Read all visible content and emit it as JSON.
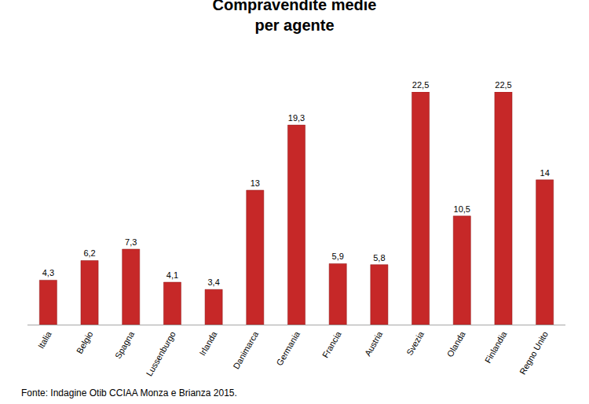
{
  "chart_data": {
    "type": "bar",
    "title": "Compravendite medie\nper agente",
    "annotations": [
      "Fonte: Indagine Otib CCIAA Monza e Brianza 2015."
    ],
    "categories": [
      "Italia",
      "Belgio",
      "Spagna",
      "Lussenburgo",
      "Irlanda",
      "Danimarca",
      "Germania",
      "Francia",
      "Austria",
      "Svezia",
      "Olanda",
      "Finlandia",
      "Regno Unito"
    ],
    "values": [
      4.3,
      6.2,
      7.3,
      4.1,
      3.4,
      13,
      19.3,
      5.9,
      5.8,
      22.5,
      10.5,
      22.5,
      14
    ],
    "value_labels": [
      "4,3",
      "6,2",
      "7,3",
      "4,1",
      "3,4",
      "13",
      "19,3",
      "5,9",
      "5,8",
      "22,5",
      "10,5",
      "22,5",
      "14"
    ],
    "color": "#c62828",
    "ylim": [
      0,
      22.5
    ],
    "yticks": [],
    "grid": false,
    "data_labels": true,
    "tick_labels": "x"
  }
}
